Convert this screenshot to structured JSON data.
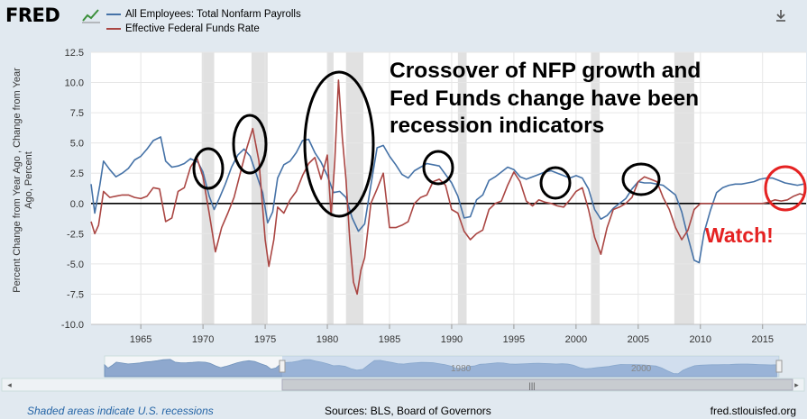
{
  "header": {
    "logo_text": "FRED",
    "logo_icon": "chart-line-icon",
    "download_icon": "download-icon"
  },
  "legend": [
    {
      "label": "All Employees: Total Nonfarm Payrolls",
      "color": "#4572a7"
    },
    {
      "label": "Effective Federal Funds Rate",
      "color": "#aa4643"
    }
  ],
  "annotations": {
    "title_lines": [
      "Crossover of NFP growth and",
      "Fed Funds change have been",
      "recession indicators"
    ],
    "watch": "Watch!",
    "circle_color_black": "#000000",
    "circle_color_red": "#e52222"
  },
  "footer": {
    "left": "Shaded areas indicate U.S. recessions",
    "sources": "Sources: BLS, Board of Governors",
    "site": "fred.stlouisfed.org"
  },
  "navigator": {
    "visible_ticks": [
      "1980",
      "2000"
    ],
    "scroll_left": "◂",
    "scroll_right": "▸",
    "grip": "|||"
  },
  "chart_data": {
    "type": "line",
    "ylabel": "Percent Change from Year Ago , Change from Year Ago, Percent",
    "xlabel": "",
    "xlim": [
      1961.0,
      2018.5
    ],
    "ylim": [
      -10.0,
      12.5
    ],
    "y_ticks": [
      "12.5",
      "10.0",
      "7.5",
      "5.0",
      "2.5",
      "0.0",
      "-2.5",
      "-5.0",
      "-7.5",
      "-10.0"
    ],
    "y_tick_values": [
      12.5,
      10.0,
      7.5,
      5.0,
      2.5,
      0.0,
      -2.5,
      -5.0,
      -7.5,
      -10.0
    ],
    "x_ticks": [
      "1965",
      "1970",
      "1975",
      "1980",
      "1985",
      "1990",
      "1995",
      "2000",
      "2005",
      "2010",
      "2015"
    ],
    "x_tick_values": [
      1965,
      1970,
      1975,
      1980,
      1985,
      1990,
      1995,
      2000,
      2005,
      2010,
      2015
    ],
    "grid": true,
    "recessions": [
      [
        1969.9,
        1970.9
      ],
      [
        1973.9,
        1975.2
      ],
      [
        1980.0,
        1980.5
      ],
      [
        1981.5,
        1982.9
      ],
      [
        1990.5,
        1991.2
      ],
      [
        2001.2,
        2001.9
      ],
      [
        2007.9,
        2009.5
      ]
    ],
    "zero_line": true,
    "series": [
      {
        "name": "All Employees: Total Nonfarm Payrolls",
        "color": "#4572a7",
        "x": [
          1961.0,
          1961.3,
          1961.7,
          1962.0,
          1962.5,
          1963.0,
          1963.5,
          1964.0,
          1964.5,
          1965.0,
          1965.5,
          1966.0,
          1966.6,
          1967.0,
          1967.5,
          1968.0,
          1968.5,
          1969.0,
          1969.6,
          1970.0,
          1970.5,
          1970.9,
          1971.3,
          1971.8,
          1972.3,
          1972.8,
          1973.3,
          1973.8,
          1974.3,
          1974.8,
          1975.2,
          1975.6,
          1976.0,
          1976.5,
          1977.0,
          1977.5,
          1978.0,
          1978.5,
          1979.0,
          1979.5,
          1980.0,
          1980.5,
          1981.0,
          1981.5,
          1982.0,
          1982.5,
          1983.0,
          1983.5,
          1984.0,
          1984.5,
          1985.0,
          1985.5,
          1986.0,
          1986.5,
          1987.0,
          1987.5,
          1988.0,
          1988.5,
          1989.0,
          1989.5,
          1990.0,
          1990.5,
          1991.0,
          1991.5,
          1992.0,
          1992.5,
          1993.0,
          1993.5,
          1994.0,
          1994.5,
          1995.0,
          1995.5,
          1996.0,
          1996.5,
          1997.0,
          1997.5,
          1998.0,
          1998.5,
          1999.0,
          1999.5,
          2000.0,
          2000.5,
          2001.0,
          2001.5,
          2002.0,
          2002.5,
          2003.0,
          2003.5,
          2004.0,
          2004.5,
          2005.0,
          2005.5,
          2006.0,
          2006.5,
          2007.0,
          2007.5,
          2008.0,
          2008.5,
          2009.0,
          2009.5,
          2009.9,
          2010.3,
          2010.8,
          2011.3,
          2011.8,
          2012.3,
          2012.8,
          2013.3,
          2013.8,
          2014.3,
          2014.8,
          2015.3,
          2015.8,
          2016.3,
          2016.8,
          2017.3,
          2017.8,
          2018.3
        ],
        "y": [
          1.6,
          -0.8,
          1.5,
          3.5,
          2.8,
          2.2,
          2.5,
          2.9,
          3.6,
          3.9,
          4.5,
          5.2,
          5.5,
          3.5,
          3.0,
          3.1,
          3.3,
          3.7,
          3.4,
          2.6,
          0.6,
          -0.5,
          0.4,
          1.6,
          3.0,
          4.0,
          4.5,
          3.9,
          2.4,
          0.9,
          -1.6,
          -0.7,
          2.1,
          3.2,
          3.5,
          4.2,
          5.2,
          5.3,
          4.2,
          3.4,
          2.3,
          0.9,
          1.0,
          0.5,
          -1.2,
          -2.3,
          -1.7,
          1.5,
          4.6,
          4.8,
          3.9,
          3.2,
          2.4,
          2.1,
          2.7,
          3.0,
          3.3,
          3.2,
          3.1,
          2.4,
          1.7,
          0.6,
          -1.2,
          -1.1,
          0.3,
          0.7,
          1.9,
          2.2,
          2.6,
          3.0,
          2.8,
          2.2,
          2.0,
          2.2,
          2.4,
          2.6,
          2.7,
          2.5,
          2.3,
          2.1,
          2.3,
          2.1,
          1.2,
          -0.5,
          -1.3,
          -1.0,
          -0.4,
          0.0,
          0.4,
          1.2,
          1.8,
          1.7,
          1.7,
          1.6,
          1.5,
          1.1,
          0.7,
          -0.7,
          -2.8,
          -4.7,
          -4.9,
          -2.4,
          -0.6,
          0.9,
          1.3,
          1.5,
          1.6,
          1.6,
          1.7,
          1.8,
          2.0,
          2.1,
          2.1,
          1.9,
          1.7,
          1.6,
          1.5,
          1.6
        ]
      },
      {
        "name": "Effective Federal Funds Rate",
        "color": "#aa4643",
        "x": [
          1961.0,
          1961.3,
          1961.6,
          1962.0,
          1962.5,
          1963.0,
          1963.5,
          1964.0,
          1964.5,
          1965.0,
          1965.5,
          1966.0,
          1966.5,
          1967.0,
          1967.5,
          1968.0,
          1968.5,
          1969.0,
          1969.5,
          1970.0,
          1970.5,
          1971.0,
          1971.5,
          1972.0,
          1972.5,
          1973.0,
          1973.5,
          1974.0,
          1974.5,
          1975.0,
          1975.3,
          1975.7,
          1976.0,
          1976.5,
          1977.0,
          1977.5,
          1978.0,
          1978.5,
          1979.0,
          1979.5,
          1980.0,
          1980.3,
          1980.6,
          1980.9,
          1981.2,
          1981.5,
          1981.8,
          1982.1,
          1982.4,
          1982.7,
          1983.0,
          1983.5,
          1984.0,
          1984.5,
          1985.0,
          1985.5,
          1986.0,
          1986.5,
          1987.0,
          1987.5,
          1988.0,
          1988.5,
          1989.0,
          1989.5,
          1990.0,
          1990.5,
          1991.0,
          1991.5,
          1992.0,
          1992.5,
          1993.0,
          1993.5,
          1994.0,
          1994.5,
          1995.0,
          1995.5,
          1996.0,
          1996.5,
          1997.0,
          1997.5,
          1998.0,
          1998.5,
          1999.0,
          1999.5,
          2000.0,
          2000.5,
          2001.0,
          2001.5,
          2002.0,
          2002.5,
          2003.0,
          2003.5,
          2004.0,
          2004.5,
          2005.0,
          2005.5,
          2006.0,
          2006.5,
          2007.0,
          2007.5,
          2008.0,
          2008.5,
          2009.0,
          2009.5,
          2010.0,
          2010.5,
          2011.0,
          2012.0,
          2013.0,
          2014.0,
          2015.0,
          2015.5,
          2016.0,
          2016.5,
          2017.0,
          2017.5,
          2018.0,
          2018.3
        ],
        "y": [
          -1.5,
          -2.5,
          -1.8,
          1.0,
          0.5,
          0.6,
          0.7,
          0.7,
          0.5,
          0.4,
          0.6,
          1.3,
          1.2,
          -1.5,
          -1.2,
          1.0,
          1.3,
          3.0,
          3.8,
          2.2,
          -0.8,
          -4.0,
          -2.0,
          -0.8,
          0.5,
          2.5,
          4.5,
          6.2,
          3.5,
          -3.0,
          -5.2,
          -3.0,
          -0.3,
          -0.8,
          0.3,
          1.0,
          2.3,
          3.3,
          3.8,
          2.0,
          4.0,
          -1.0,
          3.5,
          10.2,
          5.5,
          2.0,
          -3.0,
          -6.5,
          -7.5,
          -5.5,
          -4.5,
          0.0,
          1.2,
          2.5,
          -2.0,
          -2.0,
          -1.8,
          -1.5,
          0.0,
          0.5,
          0.7,
          1.8,
          2.0,
          1.5,
          -0.5,
          -0.8,
          -2.3,
          -3.0,
          -2.5,
          -2.2,
          -0.5,
          0.0,
          0.2,
          1.5,
          2.6,
          1.8,
          0.2,
          -0.2,
          0.3,
          0.1,
          0.0,
          -0.2,
          -0.3,
          0.3,
          1.0,
          1.3,
          -0.5,
          -2.8,
          -4.2,
          -2.0,
          -0.5,
          -0.3,
          0.0,
          0.5,
          1.8,
          2.2,
          2.0,
          1.8,
          0.5,
          -0.5,
          -2.0,
          -3.0,
          -2.2,
          -0.5,
          0.0,
          0.0,
          0.0,
          0.0,
          0.0,
          0.0,
          0.0,
          0.1,
          0.3,
          0.2,
          0.3,
          0.6,
          0.8,
          0.7
        ]
      }
    ]
  }
}
